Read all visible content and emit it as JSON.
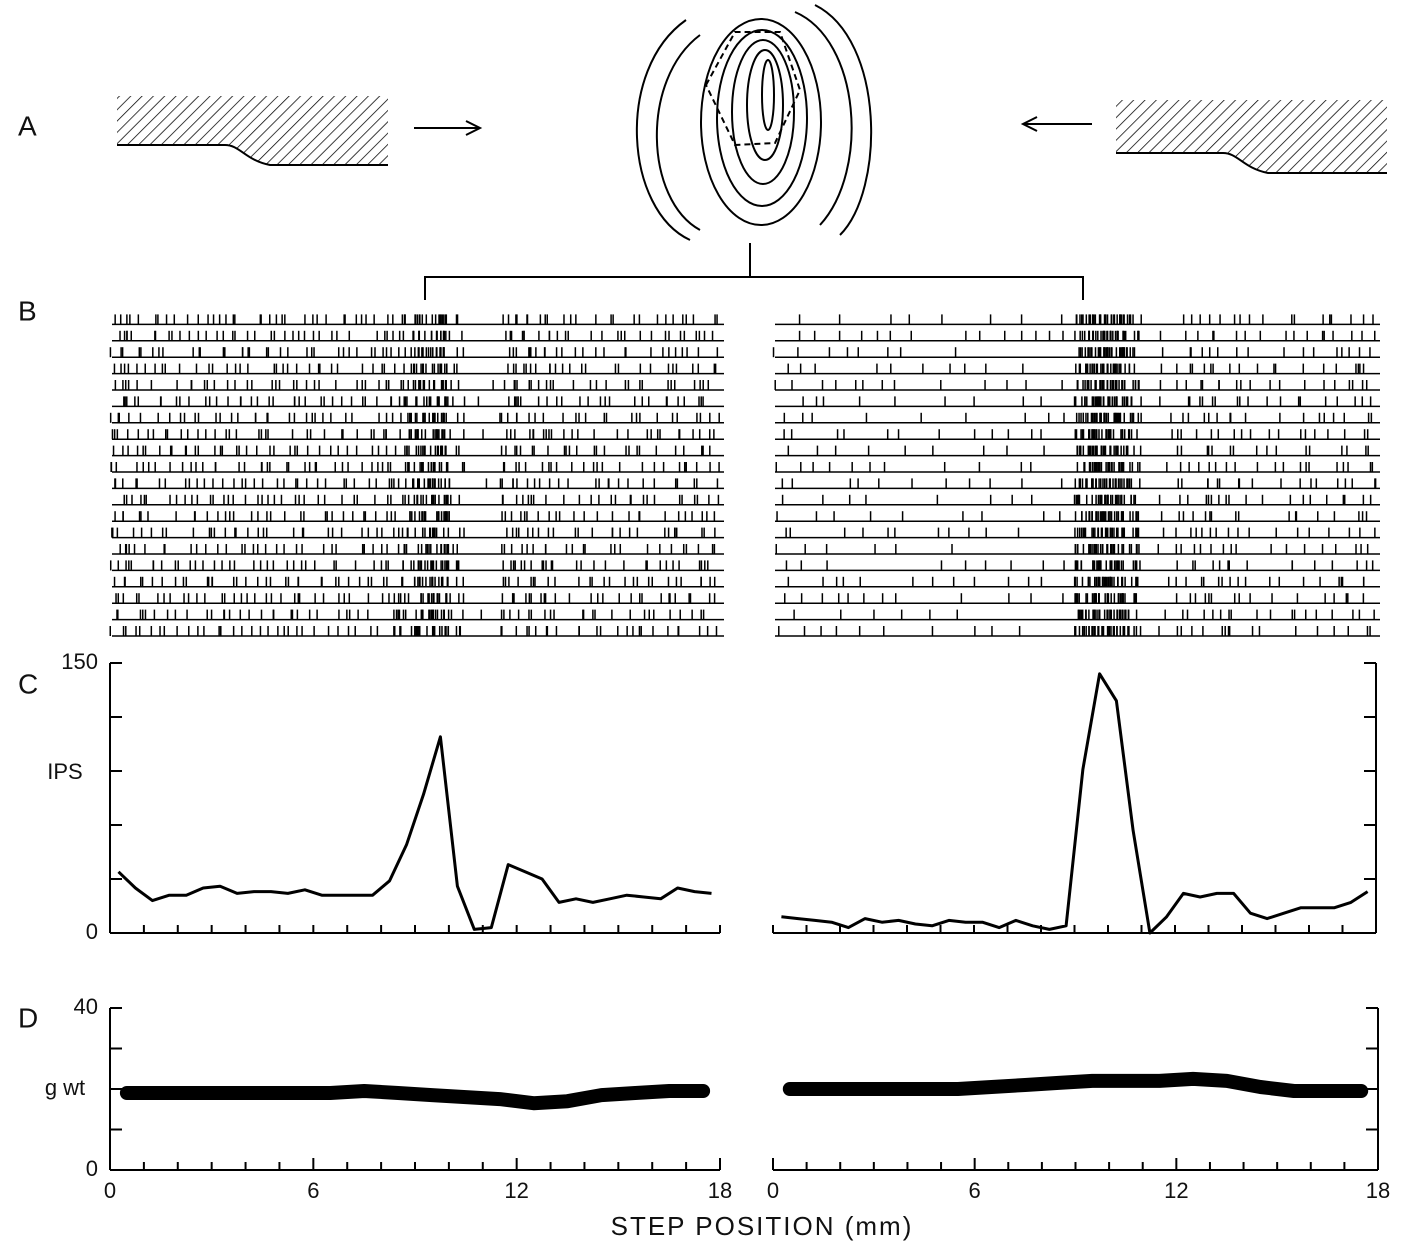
{
  "panel_labels": [
    "A",
    "B",
    "C",
    "D"
  ],
  "x_label": "STEP POSITION (mm)",
  "chart_data": [
    {
      "type": "line",
      "ylabel": "IPS",
      "color": "#000000",
      "x": [
        0.25,
        0.75,
        1.25,
        1.75,
        2.25,
        2.75,
        3.25,
        3.75,
        4.25,
        4.75,
        5.25,
        5.75,
        6.25,
        6.75,
        7.25,
        7.75,
        8.25,
        8.75,
        9.25,
        9.75,
        10.25,
        10.75,
        11.25,
        11.75,
        12.25,
        12.75,
        13.25,
        13.75,
        14.25,
        14.75,
        15.25,
        15.75,
        16.25,
        16.75,
        17.25,
        17.75
      ],
      "values": [
        34,
        25,
        18,
        21,
        21,
        25,
        26,
        22,
        23,
        23,
        22,
        24,
        21,
        21,
        21,
        21,
        29,
        49,
        77,
        109,
        26,
        2,
        3,
        38,
        34,
        30,
        17,
        19,
        17,
        19,
        21,
        20,
        19,
        25,
        23,
        22
      ],
      "xlim": [
        0,
        18
      ],
      "xminor": [
        0,
        1,
        2,
        3,
        4,
        5,
        6,
        7,
        8,
        9,
        10,
        11,
        12,
        13,
        14,
        15,
        16,
        17,
        18
      ],
      "ylim": [
        0,
        150
      ],
      "yticks": [
        0,
        150
      ],
      "yminor": [
        30,
        60,
        90,
        120
      ],
      "raster": true
    },
    {
      "type": "line",
      "color": "#000000",
      "x": [
        0.25,
        0.75,
        1.25,
        1.75,
        2.25,
        2.75,
        3.25,
        3.75,
        4.25,
        4.75,
        5.25,
        5.75,
        6.25,
        6.75,
        7.25,
        7.75,
        8.25,
        8.75,
        9.25,
        9.75,
        10.25,
        10.75,
        11.25,
        11.75,
        12.25,
        12.75,
        13.25,
        13.75,
        14.25,
        14.75,
        15.25,
        15.75,
        16.25,
        16.75,
        17.25,
        17.75
      ],
      "values": [
        9,
        8,
        7,
        6,
        3,
        8,
        6,
        7,
        5,
        4,
        7,
        6,
        6,
        3,
        7,
        4,
        2,
        4,
        91,
        144,
        129,
        57,
        0,
        9,
        22,
        20,
        22,
        22,
        11,
        8,
        11,
        14,
        14,
        14,
        17,
        23
      ],
      "xlim": [
        0,
        18
      ],
      "xminor": [
        0,
        1,
        2,
        3,
        4,
        5,
        6,
        7,
        8,
        9,
        10,
        11,
        12,
        13,
        14,
        15,
        16,
        17,
        18
      ],
      "ylim": [
        0,
        150
      ],
      "yminor": [
        0,
        30,
        60,
        90,
        120,
        150
      ],
      "raster": true
    },
    {
      "type": "band",
      "ylabel": "g wt",
      "color": "#000000",
      "x": [
        0.5,
        1.5,
        2.5,
        3.5,
        4.5,
        5.5,
        6.5,
        7.5,
        8.5,
        9.5,
        10.5,
        11.5,
        12.5,
        13.5,
        14.5,
        15.5,
        16.5,
        17.5
      ],
      "values": [
        19,
        19,
        19,
        19,
        19,
        19,
        19,
        19.5,
        19,
        18.5,
        18,
        17.5,
        16.5,
        17,
        18.5,
        19,
        19.5,
        19.5
      ],
      "xlim": [
        0,
        18
      ],
      "xticks": [
        0,
        6,
        12,
        18
      ],
      "xminor": [
        1,
        2,
        3,
        4,
        5,
        7,
        8,
        9,
        10,
        11,
        13,
        14,
        15,
        16,
        17
      ],
      "ylim": [
        0,
        40
      ],
      "yticks": [
        0,
        40
      ],
      "yminor": [
        10,
        20,
        30
      ]
    },
    {
      "type": "band",
      "color": "#000000",
      "x": [
        0.5,
        1.5,
        2.5,
        3.5,
        4.5,
        5.5,
        6.5,
        7.5,
        8.5,
        9.5,
        10.5,
        11.5,
        12.5,
        13.5,
        14.5,
        15.5,
        16.5,
        17.5
      ],
      "values": [
        20,
        20,
        20,
        20,
        20,
        20,
        20.5,
        21,
        21.5,
        22,
        22,
        22,
        22.5,
        22,
        20.5,
        19.5,
        19.5,
        19.5
      ],
      "xlim": [
        0,
        18
      ],
      "xticks": [
        0,
        6,
        12,
        18
      ],
      "xminor": [
        1,
        2,
        3,
        4,
        5,
        7,
        8,
        9,
        10,
        11,
        13,
        14,
        15,
        16,
        17
      ],
      "ylim": [
        0,
        40
      ],
      "yminor": [
        0,
        10,
        20,
        30,
        40
      ]
    }
  ]
}
